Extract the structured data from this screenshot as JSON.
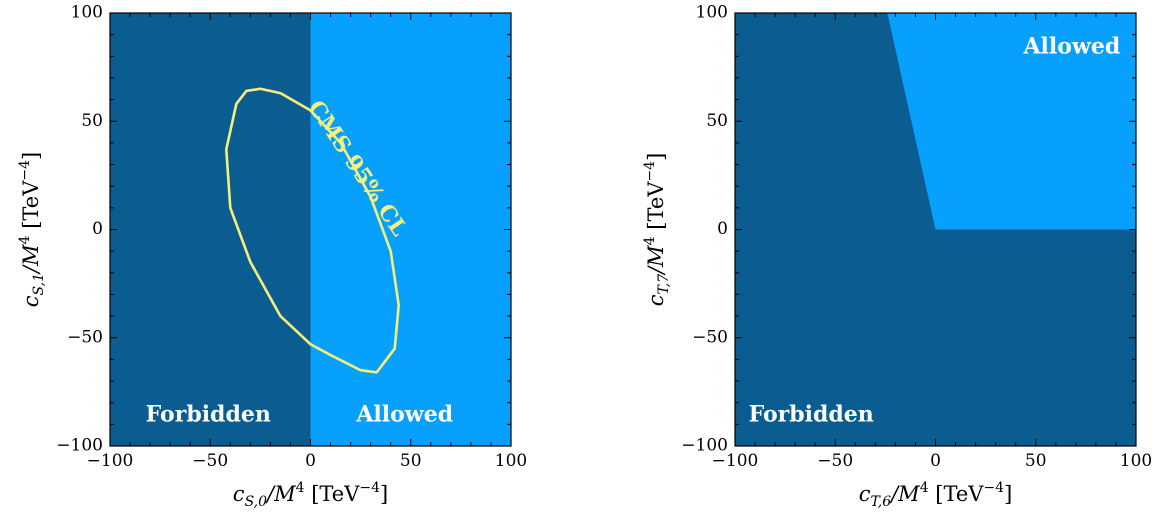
{
  "chart_data": [
    {
      "type": "area",
      "xlabel": {
        "base": "c",
        "sub": "S,0",
        "mid": "/M",
        "sup": "4",
        "unit": " [TeV",
        "unit_sup": "−4",
        "close": "]"
      },
      "ylabel": {
        "base": "c",
        "sub": "S,1",
        "mid": "/M",
        "sup": "4",
        "unit": " [TeV",
        "unit_sup": "−4",
        "close": "]"
      },
      "xlim": [
        -100,
        100
      ],
      "ylim": [
        -100,
        100
      ],
      "xticks": [
        -100,
        -50,
        0,
        50,
        100
      ],
      "yticks": [
        -100,
        -50,
        0,
        50,
        100
      ],
      "xtick_labels": [
        "−100",
        "−50",
        "0",
        "50",
        "100"
      ],
      "ytick_labels": [
        "−100",
        "−50",
        "0",
        "50",
        "100"
      ],
      "grid": false,
      "colors": {
        "forbidden": "#0b5d91",
        "allowed": "#08a0fd",
        "contour": "#f5f07a"
      },
      "regions": [
        {
          "label": "Forbidden",
          "polygon": [
            [
              -100,
              -100
            ],
            [
              0,
              -100
            ],
            [
              0,
              100
            ],
            [
              -100,
              100
            ]
          ]
        },
        {
          "label": "Allowed",
          "polygon": [
            [
              0,
              -100
            ],
            [
              100,
              -100
            ],
            [
              100,
              100
            ],
            [
              0,
              100
            ]
          ]
        }
      ],
      "region_labels": [
        {
          "text": "Forbidden",
          "x": -51,
          "y": -86
        },
        {
          "text": "Allowed",
          "x": 47,
          "y": -86
        }
      ],
      "contour": {
        "label": "CMS 95% CL",
        "points": [
          [
            -25,
            65
          ],
          [
            -15,
            63
          ],
          [
            0,
            55
          ],
          [
            15,
            40
          ],
          [
            30,
            15
          ],
          [
            40,
            -10
          ],
          [
            44,
            -35
          ],
          [
            42,
            -55
          ],
          [
            33,
            -66
          ],
          [
            25,
            -65
          ],
          [
            10,
            -58
          ],
          [
            0,
            -53
          ],
          [
            -15,
            -40
          ],
          [
            -30,
            -15
          ],
          [
            -40,
            10
          ],
          [
            -42,
            37
          ],
          [
            -37,
            58
          ],
          [
            -32,
            64
          ]
        ],
        "label_anchor": {
          "x": 23,
          "y": 28
        },
        "label_angle": 56
      }
    },
    {
      "type": "area",
      "xlabel": {
        "base": "c",
        "sub": "T,6",
        "mid": "/M",
        "sup": "4",
        "unit": " [TeV",
        "unit_sup": "−4",
        "close": "]"
      },
      "ylabel": {
        "base": "c",
        "sub": "T,7",
        "mid": "/M",
        "sup": "4",
        "unit": " [TeV",
        "unit_sup": "−4",
        "close": "]"
      },
      "xlim": [
        -100,
        100
      ],
      "ylim": [
        -100,
        100
      ],
      "xticks": [
        -100,
        -50,
        0,
        50,
        100
      ],
      "yticks": [
        -100,
        -50,
        0,
        50,
        100
      ],
      "xtick_labels": [
        "−100",
        "−50",
        "0",
        "50",
        "100"
      ],
      "ytick_labels": [
        "−100",
        "−50",
        "0",
        "50",
        "100"
      ],
      "grid": false,
      "colors": {
        "forbidden": "#0b5d91",
        "allowed": "#08a0fd"
      },
      "regions": [
        {
          "label": "Forbidden",
          "polygon": [
            [
              -100,
              -100
            ],
            [
              100,
              -100
            ],
            [
              100,
              100
            ],
            [
              -100,
              100
            ]
          ]
        },
        {
          "label": "Allowed",
          "polygon": [
            [
              -24,
              100
            ],
            [
              100,
              100
            ],
            [
              100,
              0
            ],
            [
              0,
              0
            ]
          ]
        }
      ],
      "region_labels": [
        {
          "text": "Forbidden",
          "x": -62,
          "y": -86
        },
        {
          "text": "Allowed",
          "x": 68,
          "y": 84
        }
      ]
    }
  ]
}
